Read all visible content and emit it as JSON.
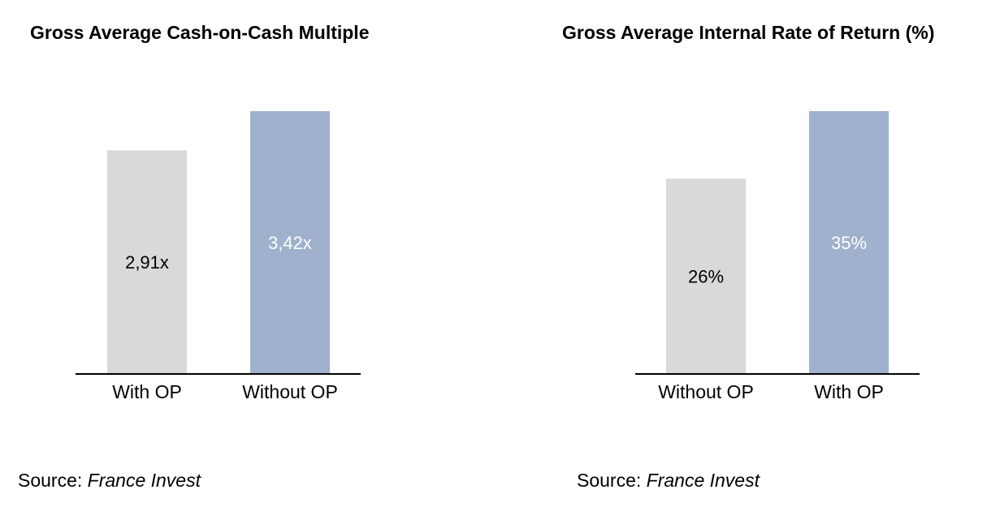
{
  "chart_data": [
    {
      "type": "bar",
      "title": "Gross Average Cash-on-Cash Multiple",
      "categories": [
        "With OP",
        "Without OP"
      ],
      "values": [
        2.91,
        3.42
      ],
      "data_labels": [
        "2,91x",
        "3,42x"
      ],
      "colors": [
        "#d9d9d9",
        "#9fb1cd"
      ],
      "label_colors": [
        "#000000",
        "#ffffff"
      ],
      "ylim": [
        0,
        3.42
      ],
      "grid": false,
      "source_label": "Source:",
      "source_name": "France Invest"
    },
    {
      "type": "bar",
      "title": "Gross Average Internal Rate of Return (%)",
      "categories": [
        "Without OP",
        "With OP"
      ],
      "values": [
        26,
        35
      ],
      "data_labels": [
        "26%",
        "35%"
      ],
      "colors": [
        "#d9d9d9",
        "#9fb1cd"
      ],
      "label_colors": [
        "#000000",
        "#ffffff"
      ],
      "ylim": [
        0,
        35
      ],
      "grid": false,
      "source_label": "Source:",
      "source_name": "France Invest"
    }
  ]
}
